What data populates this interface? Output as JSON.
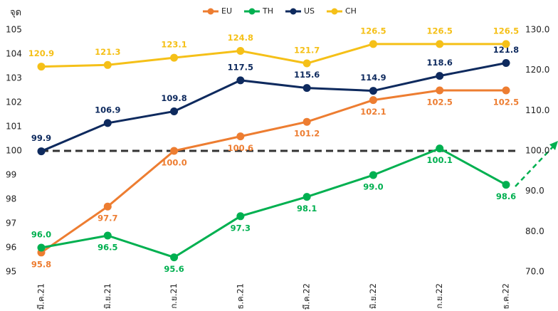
{
  "chart_data": {
    "type": "line",
    "y_label": "จุด",
    "categories": [
      "มี.ค.21",
      "มิ.ย.21",
      "ก.ย.21",
      "ธ.ค.21",
      "มี.ค.22",
      "มิ.ย.22",
      "ก.ย.22",
      "ธ.ค.22"
    ],
    "series": [
      {
        "name": "EU",
        "color": "#ed7d31",
        "values": [
          95.8,
          97.7,
          100.0,
          100.6,
          101.2,
          102.1,
          102.5,
          102.5
        ],
        "value_labels": [
          "95.8",
          "97.7",
          "100.0",
          "100.6",
          "101.2",
          "102.1",
          "102.5",
          "102.5"
        ]
      },
      {
        "name": "TH",
        "color": "#00b050",
        "values": [
          96.0,
          96.5,
          95.6,
          97.3,
          98.1,
          99.0,
          100.1,
          98.6
        ],
        "value_labels": [
          "96.0",
          "96.5",
          "95.6",
          "97.3",
          "98.1",
          "99.0",
          "100.1",
          "98.6"
        ]
      },
      {
        "name": "US",
        "color": "#0e2a5e",
        "axis": "y2",
        "values": [
          99.9,
          106.9,
          109.8,
          117.5,
          115.6,
          114.9,
          118.6,
          121.8
        ],
        "value_labels": [
          "99.9",
          "106.9",
          "109.8",
          "117.5",
          "115.6",
          "114.9",
          "118.6",
          "121.8"
        ]
      },
      {
        "name": "CH",
        "color": "#f5c018",
        "axis": "y2",
        "values": [
          120.9,
          121.3,
          123.1,
          124.8,
          121.7,
          126.5,
          126.5,
          126.5
        ],
        "value_labels": [
          "120.9",
          "121.3",
          "123.1",
          "124.8",
          "121.7",
          "126.5",
          "126.5",
          "126.5"
        ]
      }
    ],
    "ylim": [
      95,
      105
    ],
    "yticks": [
      95,
      96,
      97,
      98,
      99,
      100,
      101,
      102,
      103,
      104,
      105
    ],
    "y2lim": [
      70,
      130
    ],
    "y2ticks": [
      {
        "value": 70,
        "label": "70.0"
      },
      {
        "value": 80,
        "label": "80.0"
      },
      {
        "value": 90,
        "label": "90.0"
      },
      {
        "value": 100,
        "label": "100.0"
      },
      {
        "value": 110,
        "label": "110.0"
      },
      {
        "value": 120,
        "label": "120.0"
      },
      {
        "value": 130,
        "label": "130.0"
      }
    ],
    "reference_line": 100,
    "legend": "top"
  }
}
